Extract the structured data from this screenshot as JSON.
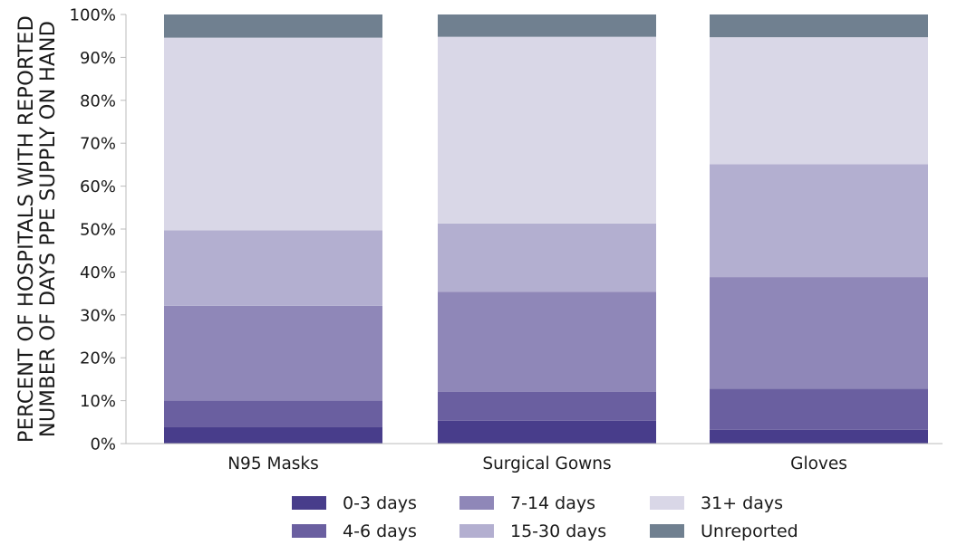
{
  "chart_data": {
    "type": "bar",
    "stacked": true,
    "categories": [
      "N95 Masks",
      "Surgical Gowns",
      "Gloves"
    ],
    "series": [
      {
        "name": "0-3 days",
        "color": "#483d8b",
        "values": [
          3.8,
          5.3,
          3.2
        ]
      },
      {
        "name": "4-6 days",
        "color": "#6a5fa0",
        "values": [
          6.2,
          6.8,
          9.6
        ]
      },
      {
        "name": "7-14 days",
        "color": "#8f87b8",
        "values": [
          22.1,
          23.3,
          26.0
        ]
      },
      {
        "name": "15-30 days",
        "color": "#b3afd0",
        "values": [
          17.6,
          15.9,
          26.3
        ]
      },
      {
        "name": "31+ days",
        "color": "#d9d7e7",
        "values": [
          44.9,
          43.5,
          29.6
        ]
      },
      {
        "name": "Unreported",
        "color": "#708090",
        "values": [
          5.4,
          5.2,
          5.3
        ]
      }
    ],
    "ylabel": [
      "PERCENT OF HOSPITALS WITH REPORTED",
      "NUMBER OF DAYS PPE SUPPLY ON HAND"
    ],
    "ylim": [
      0,
      100
    ],
    "yticks": [
      "0%",
      "10%",
      "20%",
      "30%",
      "40%",
      "50%",
      "60%",
      "70%",
      "80%",
      "90%",
      "100%"
    ],
    "legend_position": "bottom",
    "grid": false
  }
}
